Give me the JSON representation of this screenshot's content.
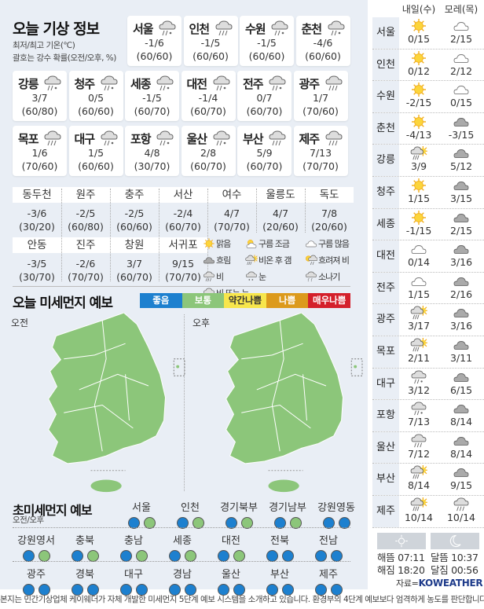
{
  "today": {
    "title": "오늘 기상 정보",
    "subtitle1": "최저/최고 기온(℃)",
    "subtitle2": "괄호는 강수 확률(오전/오후, %)",
    "cities": [
      {
        "name": "서울",
        "temp": "-1/6",
        "prob": "(60/60)",
        "icon": "rain-snow"
      },
      {
        "name": "인천",
        "temp": "-1/5",
        "prob": "(60/60)",
        "icon": "rain"
      },
      {
        "name": "수원",
        "temp": "-1/5",
        "prob": "(60/60)",
        "icon": "rain-snow"
      },
      {
        "name": "춘천",
        "temp": "-4/6",
        "prob": "(60/60)",
        "icon": "rain-snow"
      },
      {
        "name": "강릉",
        "temp": "3/7",
        "prob": "(60/80)",
        "icon": "rain-snow"
      },
      {
        "name": "청주",
        "temp": "0/5",
        "prob": "(60/60)",
        "icon": "rain-snow"
      },
      {
        "name": "세종",
        "temp": "-1/5",
        "prob": "(60/70)",
        "icon": "rain-snow"
      },
      {
        "name": "대전",
        "temp": "-1/4",
        "prob": "(60/70)",
        "icon": "rain-snow"
      },
      {
        "name": "전주",
        "temp": "0/7",
        "prob": "(60/70)",
        "icon": "rain-snow"
      },
      {
        "name": "광주",
        "temp": "1/7",
        "prob": "(70/60)",
        "icon": "rain"
      },
      {
        "name": "목포",
        "temp": "1/6",
        "prob": "(70/60)",
        "icon": "rain"
      },
      {
        "name": "대구",
        "temp": "1/5",
        "prob": "(60/60)",
        "icon": "rain-snow"
      },
      {
        "name": "포항",
        "temp": "4/8",
        "prob": "(30/70)",
        "icon": "rain-snow"
      },
      {
        "name": "울산",
        "temp": "2/8",
        "prob": "(60/70)",
        "icon": "rain-snow"
      },
      {
        "name": "부산",
        "temp": "5/9",
        "prob": "(60/70)",
        "icon": "rain"
      },
      {
        "name": "제주",
        "temp": "7/13",
        "prob": "(70/70)",
        "icon": "rain"
      }
    ],
    "small_cities": [
      {
        "name": "동두천",
        "temp": "-3/6",
        "prob": "(30/20)"
      },
      {
        "name": "원주",
        "temp": "-2/5",
        "prob": "(60/80)"
      },
      {
        "name": "충주",
        "temp": "-2/5",
        "prob": "(60/60)"
      },
      {
        "name": "서산",
        "temp": "-2/4",
        "prob": "(60/70)"
      },
      {
        "name": "여수",
        "temp": "4/7",
        "prob": "(70/70)"
      },
      {
        "name": "울릉도",
        "temp": "4/7",
        "prob": "(20/60)"
      },
      {
        "name": "독도",
        "temp": "7/8",
        "prob": "(20/60)"
      },
      {
        "name": "안동",
        "temp": "-3/5",
        "prob": "(30/70)"
      },
      {
        "name": "진주",
        "temp": "-2/6",
        "prob": "(70/70)"
      },
      {
        "name": "창원",
        "temp": "3/7",
        "prob": "(60/70)"
      },
      {
        "name": "서귀포",
        "temp": "9/15",
        "prob": "(70/70)"
      }
    ],
    "legend": [
      {
        "label": "맑음",
        "icon": "sun"
      },
      {
        "label": "구름 조금",
        "icon": "sun-cloud"
      },
      {
        "label": "구름 많음",
        "icon": "cloud"
      },
      {
        "label": "흐림",
        "icon": "dark-cloud"
      },
      {
        "label": "비온 후 갬",
        "icon": "rain-sun"
      },
      {
        "label": "흐려져 비",
        "icon": "sun-rain"
      },
      {
        "label": "비",
        "icon": "rain"
      },
      {
        "label": "눈",
        "icon": "snow"
      },
      {
        "label": "소나기",
        "icon": "shower"
      },
      {
        "label": "비 또는 눈",
        "icon": "rain-snow"
      }
    ]
  },
  "dust": {
    "title": "오늘 미세먼지 예보",
    "morning": "오전",
    "afternoon": "오후",
    "scale": [
      {
        "label": "좋음",
        "color": "#1d80cf"
      },
      {
        "label": "보통",
        "color": "#8cc67a"
      },
      {
        "label": "약간나쁨",
        "color": "#f7e64c"
      },
      {
        "label": "나쁨",
        "color": "#dc9a1c"
      },
      {
        "label": "매우나쁨",
        "color": "#d4202b"
      }
    ]
  },
  "ultrafine": {
    "title": "초미세먼지 예보",
    "subtitle": "오전/오후",
    "regions": [
      {
        "name": "서울",
        "am": "좋음",
        "pm": "보통"
      },
      {
        "name": "인천",
        "am": "좋음",
        "pm": "보통"
      },
      {
        "name": "경기북부",
        "am": "좋음",
        "pm": "보통"
      },
      {
        "name": "경기남부",
        "am": "좋음",
        "pm": "보통"
      },
      {
        "name": "강원영동",
        "am": "좋음",
        "pm": "좋음"
      },
      {
        "name": "강원영서",
        "am": "좋음",
        "pm": "보통"
      },
      {
        "name": "충북",
        "am": "좋음",
        "pm": "보통"
      },
      {
        "name": "충남",
        "am": "좋음",
        "pm": "보통"
      },
      {
        "name": "세종",
        "am": "좋음",
        "pm": "보통"
      },
      {
        "name": "대전",
        "am": "좋음",
        "pm": "보통"
      },
      {
        "name": "전북",
        "am": "좋음",
        "pm": "좋음"
      },
      {
        "name": "전남",
        "am": "좋음",
        "pm": "좋음"
      },
      {
        "name": "광주",
        "am": "좋음",
        "pm": "좋음"
      },
      {
        "name": "경북",
        "am": "좋음",
        "pm": "좋음"
      },
      {
        "name": "대구",
        "am": "좋음",
        "pm": "좋음"
      },
      {
        "name": "경남",
        "am": "좋음",
        "pm": "좋음"
      },
      {
        "name": "울산",
        "am": "좋음",
        "pm": "좋음"
      },
      {
        "name": "부산",
        "am": "좋음",
        "pm": "좋음"
      },
      {
        "name": "제주",
        "am": "좋음",
        "pm": "좋음"
      }
    ]
  },
  "forecast": {
    "tomorrow": "내일(수)",
    "day_after": "모레(목)",
    "rows": [
      {
        "city": "서울",
        "t_icon": "sun",
        "t": "0/15",
        "d_icon": "cloud",
        "d": "2/15"
      },
      {
        "city": "인천",
        "t_icon": "sun",
        "t": "0/12",
        "d_icon": "cloud",
        "d": "2/12"
      },
      {
        "city": "수원",
        "t_icon": "sun",
        "t": "-2/15",
        "d_icon": "cloud",
        "d": "0/15"
      },
      {
        "city": "춘천",
        "t_icon": "sun",
        "t": "-4/13",
        "d_icon": "dark-cloud",
        "d": "-3/15"
      },
      {
        "city": "강릉",
        "t_icon": "rain-sun",
        "t": "3/9",
        "d_icon": "dark-cloud",
        "d": "5/12"
      },
      {
        "city": "청주",
        "t_icon": "sun",
        "t": "1/15",
        "d_icon": "dark-cloud",
        "d": "3/15"
      },
      {
        "city": "세종",
        "t_icon": "sun",
        "t": "-1/15",
        "d_icon": "dark-cloud",
        "d": "2/15"
      },
      {
        "city": "대전",
        "t_icon": "cloud",
        "t": "0/14",
        "d_icon": "dark-cloud",
        "d": "3/16"
      },
      {
        "city": "전주",
        "t_icon": "cloud",
        "t": "1/15",
        "d_icon": "dark-cloud",
        "d": "2/16"
      },
      {
        "city": "광주",
        "t_icon": "rain-sun",
        "t": "3/17",
        "d_icon": "dark-cloud",
        "d": "3/16"
      },
      {
        "city": "목포",
        "t_icon": "rain-sun",
        "t": "2/11",
        "d_icon": "dark-cloud",
        "d": "3/11"
      },
      {
        "city": "대구",
        "t_icon": "rain-snow",
        "t": "3/12",
        "d_icon": "dark-cloud",
        "d": "6/15"
      },
      {
        "city": "포항",
        "t_icon": "rain-snow",
        "t": "7/13",
        "d_icon": "dark-cloud",
        "d": "8/14"
      },
      {
        "city": "울산",
        "t_icon": "rain",
        "t": "7/12",
        "d_icon": "dark-cloud",
        "d": "8/14"
      },
      {
        "city": "부산",
        "t_icon": "rain-sun",
        "t": "8/14",
        "d_icon": "dark-cloud",
        "d": "9/15"
      },
      {
        "city": "제주",
        "t_icon": "rain-sun",
        "t": "10/14",
        "d_icon": "rain",
        "d": "10/14"
      }
    ],
    "sunrise": "해뜸 07:11",
    "sunset": "해짐 18:20",
    "moonrise": "달뜸 10:37",
    "moonset": "달짐 00:56",
    "source_prefix": "자료=",
    "source_logo": "KOWEATHER"
  },
  "footer": "본지는 민간기상업체 케이웨더가 자체 개발한 미세먼지 5단계 예보 시스템을 소개하고 있습니다. 환경부의 4단계 예보보다 엄격하게 농도를 판단합니다."
}
